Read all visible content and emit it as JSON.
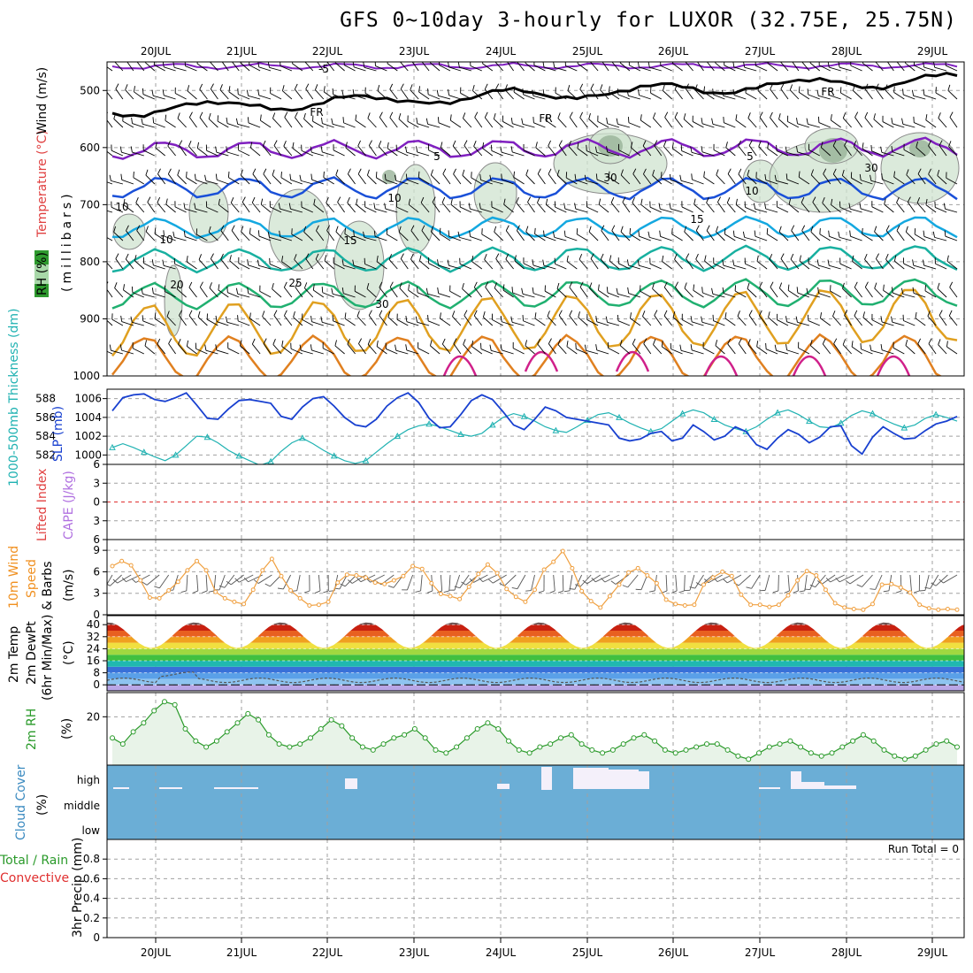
{
  "title": "GFS 0~10day 3-hourly for LUXOR (32.75E, 25.75N)",
  "dates": [
    "20JUL",
    "21JUL",
    "22JUL",
    "23JUL",
    "24JUL",
    "25JUL",
    "26JUL",
    "27JUL",
    "28JUL",
    "29JUL"
  ],
  "colors": {
    "axis": "#000000",
    "grid": "#a0a0a0",
    "rh_fill": "#cfe3cf",
    "rh_dark": "#99b399",
    "cloud_blue": "#6baed6",
    "cloud_clear": "#f4f0fa",
    "thickness": "#20b2b2",
    "slp": "#1840d0",
    "wind10m": "#f0a040",
    "rh2m": "#2a9a2a",
    "rh2m_fill": "#e8f3e8",
    "li_zero": "#e03030"
  },
  "legends": {
    "upper_rh": "RH (%)",
    "upper_temp": "Temperature (°C)",
    "upper_wind": "Wind (m/s)",
    "upper_yunit": "(millibars)",
    "thickness": "1000-500mb Thickness (dm)",
    "slp": "SLP (mb)",
    "lifted": "Lifted Index",
    "cape": "CAPE (J/kg)",
    "wind10m_a": "10m Wind",
    "wind10m_b": "Speed",
    "wind10m_c": "& Barbs",
    "wind10m_unit": "(m/s)",
    "temp_a": "2m Temp",
    "temp_b": "2m DewPt",
    "temp_c": "(6hr Min/Max)",
    "temp_unit": "(°C)",
    "rh2m": "2m RH",
    "rh2m_unit": "(%)",
    "cloud_a": "Cloud Cover",
    "cloud_unit": "(%)",
    "precip_a": "Total / Rain",
    "precip_b": "Convective",
    "precip_unit": "3hr Precip (mm)",
    "run_total": "Run Total = 0"
  },
  "chart_data": [
    {
      "type": "line",
      "panel": "upper-air temperature (isotherms), relative humidity and wind",
      "xlabel": "",
      "ylabel": "(millibars)",
      "y_ticks": [
        500,
        600,
        700,
        800,
        900,
        1000
      ],
      "ylim": [
        450,
        1000
      ],
      "contour_labels": [
        "-5",
        "FR",
        "FR",
        "FR",
        "5",
        "5",
        "10",
        "10",
        "10",
        "15",
        "15",
        "20",
        "25",
        "30",
        "10",
        "30",
        "30"
      ]
    },
    {
      "type": "line",
      "panel": "1000-500mb thickness and SLP",
      "y_left_ticks": [
        582,
        584,
        586,
        588
      ],
      "y_right_ticks": [
        1000,
        1002,
        1004,
        1006
      ],
      "ylim_left": [
        581,
        589
      ],
      "ylim_right": [
        999,
        1007
      ],
      "series": [
        {
          "name": "1000-500mb Thickness (dm)",
          "values": [
            582.8,
            583.2,
            582.8,
            582.3,
            581.8,
            581.4,
            582.0,
            583.0,
            584.0,
            583.9,
            583.3,
            582.5,
            581.9,
            581.4,
            580.9,
            581.3,
            582.4,
            583.3,
            583.8,
            583.2,
            582.5,
            581.9,
            581.4,
            581.1,
            581.4,
            582.3,
            583.2,
            584.0,
            584.7,
            585.1,
            585.3,
            585.0,
            584.6,
            584.2,
            584.0,
            584.3,
            585.2,
            586.0,
            586.4,
            586.1,
            585.6,
            585.0,
            584.6,
            584.4,
            585.0,
            585.7,
            586.3,
            586.5,
            586.0,
            585.4,
            584.9,
            584.5,
            584.8,
            585.6,
            586.4,
            586.8,
            586.5,
            585.8,
            585.2,
            584.8,
            584.5,
            585.0,
            585.8,
            586.5,
            586.8,
            586.3,
            585.6,
            585.0,
            584.9,
            585.4,
            586.2,
            586.7,
            586.4,
            585.8,
            585.3,
            584.9,
            585.2,
            585.9,
            586.3,
            586.0,
            585.6
          ]
        },
        {
          "name": "SLP (mb)",
          "values": [
            1004.7,
            1006.1,
            1006.4,
            1006.5,
            1005.9,
            1005.7,
            1006.1,
            1006.6,
            1005.3,
            1003.9,
            1003.8,
            1004.9,
            1005.8,
            1005.9,
            1005.7,
            1005.5,
            1004.1,
            1003.8,
            1005.1,
            1006.0,
            1006.2,
            1005.2,
            1004.0,
            1003.2,
            1003.0,
            1003.8,
            1005.2,
            1006.1,
            1006.6,
            1005.6,
            1003.9,
            1002.9,
            1003.0,
            1004.3,
            1005.8,
            1006.4,
            1005.9,
            1004.6,
            1003.2,
            1002.7,
            1003.8,
            1005.1,
            1004.7,
            1004.0,
            1003.8,
            1003.6,
            1003.4,
            1003.2,
            1001.8,
            1001.5,
            1001.7,
            1002.3,
            1002.5,
            1001.5,
            1001.8,
            1003.2,
            1002.5,
            1001.6,
            1002.0,
            1003.0,
            1002.5,
            1001.1,
            1000.6,
            1001.8,
            1002.7,
            1002.2,
            1001.3,
            1001.9,
            1003.0,
            1003.1,
            1001.0,
            1000.1,
            1001.9,
            1003.0,
            1002.3,
            1001.7,
            1001.8,
            1002.6,
            1003.3,
            1003.6,
            1004.1
          ]
        }
      ]
    },
    {
      "type": "line",
      "panel": "Lifted Index and CAPE",
      "y_ticks": [
        -6,
        -3,
        0,
        3,
        6
      ],
      "y_tick_labels": [
        "6",
        "3",
        "0",
        "3",
        "6"
      ],
      "ylim": [
        -6,
        6
      ],
      "series": []
    },
    {
      "type": "line",
      "panel": "10m wind speed and barbs",
      "ylabel": "(m/s)",
      "y_ticks": [
        0,
        3,
        6,
        9
      ],
      "y_tick_labels": [
        "0",
        "3",
        "6",
        "9"
      ],
      "ylim": [
        0,
        10.5
      ],
      "series": [
        {
          "name": "10m Wind Speed",
          "values": [
            6.8,
            7.5,
            6.9,
            4.8,
            2.4,
            2.3,
            3.4,
            4.6,
            6.2,
            7.5,
            6.2,
            3.2,
            2.3,
            1.8,
            1.5,
            3.5,
            6.2,
            7.8,
            5.4,
            3.4,
            2.3,
            1.3,
            1.4,
            1.8,
            4.5,
            5.6,
            5.5,
            5.2,
            4.5,
            4.3,
            4.8,
            5.4,
            6.8,
            6.4,
            4.4,
            2.9,
            2.6,
            2.2,
            3.9,
            5.7,
            7.0,
            5.8,
            3.6,
            2.5,
            1.8,
            3.5,
            6.3,
            7.4,
            8.9,
            6.5,
            3.3,
            1.9,
            1.0,
            2.6,
            4.2,
            5.9,
            6.5,
            5.5,
            4.4,
            2.1,
            1.5,
            1.3,
            1.4,
            4.2,
            5.2,
            6.0,
            5.4,
            2.8,
            1.4,
            1.4,
            1.1,
            1.4,
            2.7,
            4.8,
            6.1,
            5.5,
            3.5,
            1.6,
            1.0,
            0.8,
            0.7,
            1.5,
            4.2,
            4.3,
            3.8,
            3.1,
            1.4,
            0.9,
            0.7,
            0.8,
            0.7
          ]
        }
      ]
    },
    {
      "type": "area",
      "panel": "2m temperature and dew point",
      "ylabel": "(°C)",
      "y_ticks": [
        0,
        8,
        16,
        24,
        32,
        40
      ],
      "y_tick_labels": [
        "0",
        "8",
        "16",
        "24",
        "32",
        "40"
      ],
      "ylim": [
        -4,
        46
      ]
    },
    {
      "type": "line",
      "panel": "2m relative humidity",
      "ylabel": "(%)",
      "y_ticks": [
        20
      ],
      "y_tick_labels": [
        "20"
      ],
      "series": [
        {
          "name": "2m RH",
          "values": [
            13,
            11,
            15,
            18,
            22,
            25,
            24,
            16,
            12,
            10,
            12,
            15,
            18,
            21,
            19,
            14,
            11,
            10,
            11,
            13,
            16,
            19,
            17,
            13,
            10,
            9,
            11,
            13,
            14,
            16,
            13,
            9,
            8,
            10,
            13,
            16,
            18,
            16,
            12,
            9,
            8,
            10,
            11,
            13,
            14,
            11,
            9,
            8,
            9,
            11,
            13,
            14,
            12,
            9,
            8,
            9,
            10,
            11,
            11,
            9,
            7,
            6,
            8,
            10,
            11,
            12,
            10,
            8,
            7,
            8,
            10,
            12,
            14,
            12,
            9,
            7,
            6,
            7,
            9,
            11,
            12,
            10
          ]
        }
      ]
    },
    {
      "type": "heatmap",
      "panel": "cloud cover",
      "y_tick_labels": [
        "high",
        "middle",
        "low"
      ],
      "series": []
    },
    {
      "type": "line",
      "panel": "3hr precipitation",
      "ylabel": "3hr Precip (mm)",
      "y_ticks": [
        0,
        0.2,
        0.4,
        0.6,
        0.8
      ],
      "y_tick_labels": [
        "0",
        "0.2",
        "0.4",
        "0.6",
        "0.8"
      ],
      "ylim": [
        0,
        1.0
      ],
      "series": []
    }
  ]
}
